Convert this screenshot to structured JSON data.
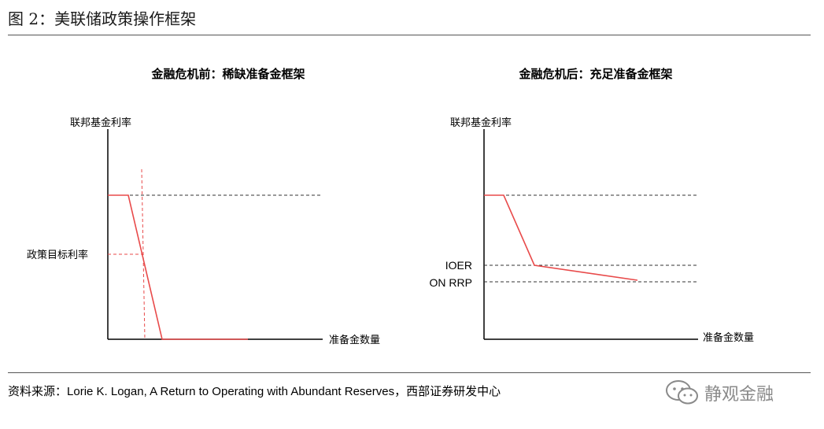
{
  "figure": {
    "title": "图 2：美联储政策操作框架",
    "source_prefix": "资料来源：",
    "source_ref": "Lorie K. Logan, A Return to Operating with Abundant Reserves，",
    "source_org": "西部证券研发中心",
    "watermark": "静观金融",
    "colors": {
      "curve": "#e84a4a",
      "axis": "#000000",
      "guide": "#333333"
    }
  },
  "left": {
    "title": "金融危机前：稀缺准备金框架",
    "y_label": "联邦基金利率",
    "x_label": "准备金数量",
    "target_label": "政策目标利率"
  },
  "right": {
    "title": "金融危机后：充足准备金框架",
    "y_label": "联邦基金利率",
    "x_label": "准备金数量",
    "ioer_label": "IOER",
    "onrrp_label": "ON RRP"
  }
}
